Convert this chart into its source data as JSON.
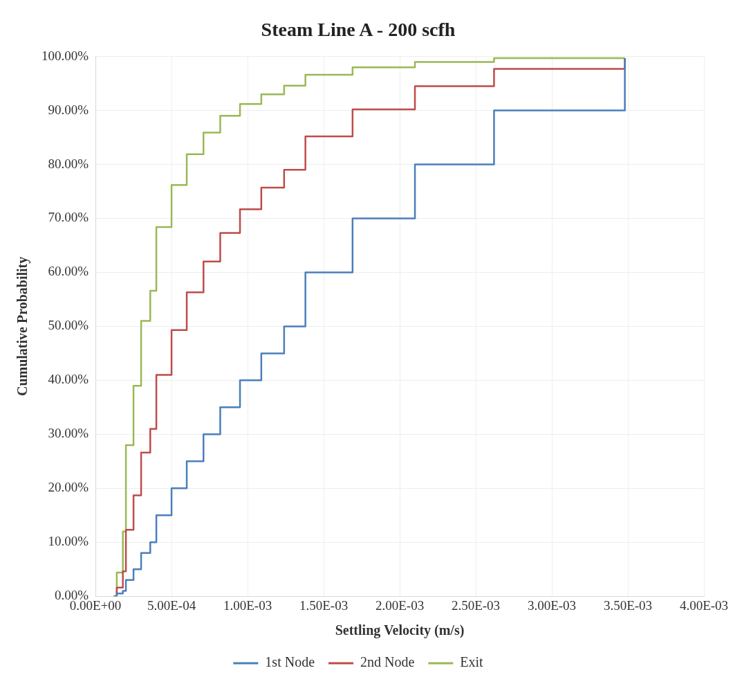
{
  "chart_data": {
    "type": "step",
    "title": "Steam Line A - 200 scfh",
    "xlabel": "Settling Velocity (m/s)",
    "ylabel": "Cumulative Probability",
    "x": [
      0.00012,
      0.00014,
      0.00018,
      0.0002,
      0.00025,
      0.0003,
      0.00036,
      0.0004,
      0.0005,
      0.0006,
      0.00071,
      0.00082,
      0.00095,
      0.00109,
      0.00124,
      0.00138,
      0.00169,
      0.0021,
      0.00262,
      0.00348
    ],
    "series": [
      {
        "name": "1st Node",
        "color": "#4a7ebb",
        "values": [
          0,
          0.5,
          1,
          3,
          5,
          8,
          10,
          15,
          20,
          25,
          30,
          35,
          40,
          45,
          50,
          60,
          70,
          80,
          90,
          99.7
        ]
      },
      {
        "name": "2nd Node",
        "color": "#be4b48",
        "values": [
          0,
          1.6,
          4.6,
          12.3,
          18.7,
          26.6,
          31,
          41,
          49.3,
          56.3,
          62,
          67.3,
          71.7,
          75.7,
          79,
          85.2,
          90.2,
          94.5,
          97.7,
          99.7
        ]
      },
      {
        "name": "Exit",
        "color": "#98b954",
        "values": [
          0,
          4.4,
          12,
          28,
          39,
          51,
          56.6,
          68.4,
          76.2,
          81.9,
          85.9,
          89,
          91.2,
          93,
          94.6,
          96.6,
          98,
          99,
          99.7,
          99.7
        ]
      }
    ],
    "xlim": [
      0,
      0.004
    ],
    "xticks": [
      {
        "value": 0,
        "label": "0.00E+00"
      },
      {
        "value": 0.0005,
        "label": "5.00E-04"
      },
      {
        "value": 0.001,
        "label": "1.00E-03"
      },
      {
        "value": 0.0015,
        "label": "1.50E-03"
      },
      {
        "value": 0.002,
        "label": "2.00E-03"
      },
      {
        "value": 0.0025,
        "label": "2.50E-03"
      },
      {
        "value": 0.003,
        "label": "3.00E-03"
      },
      {
        "value": 0.0035,
        "label": "3.50E-03"
      },
      {
        "value": 0.004,
        "label": "4.00E-03"
      }
    ],
    "ylim": [
      0,
      100
    ],
    "yticks": [
      {
        "value": 0,
        "label": "0.00%"
      },
      {
        "value": 10,
        "label": "10.00%"
      },
      {
        "value": 20,
        "label": "20.00%"
      },
      {
        "value": 30,
        "label": "30.00%"
      },
      {
        "value": 40,
        "label": "40.00%"
      },
      {
        "value": 50,
        "label": "50.00%"
      },
      {
        "value": 60,
        "label": "60.00%"
      },
      {
        "value": 70,
        "label": "70.00%"
      },
      {
        "value": 80,
        "label": "80.00%"
      },
      {
        "value": 90,
        "label": "90.00%"
      },
      {
        "value": 100,
        "label": "100.00%"
      }
    ],
    "grid": true,
    "legend": "bottom",
    "marker": "none",
    "line_style": "solid"
  }
}
